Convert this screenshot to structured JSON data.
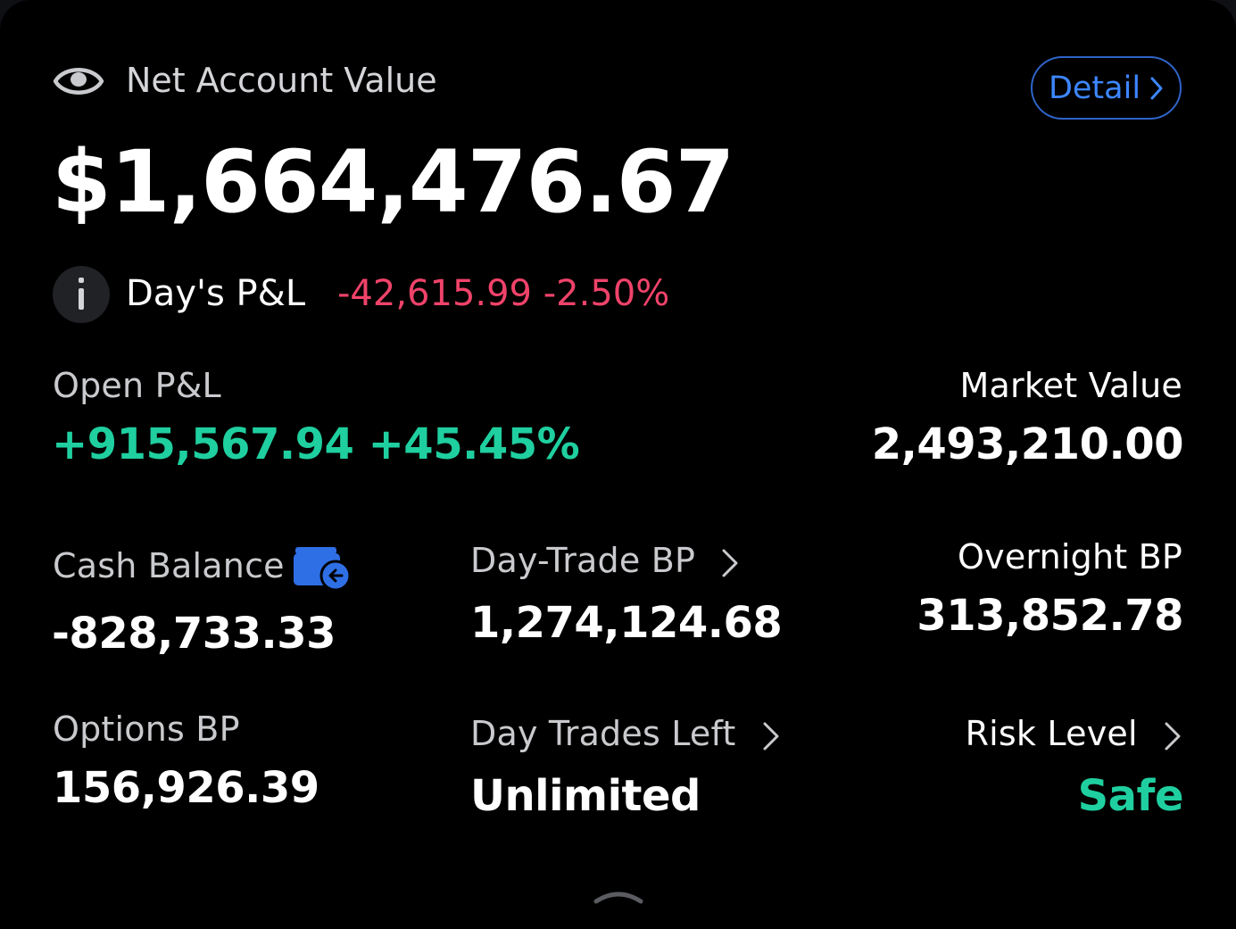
{
  "net_account_value": {
    "label": "Net Account Value",
    "amount": "$1,664,476.67",
    "detail_button": "Detail"
  },
  "days_pnl": {
    "label": "Day's P&L",
    "value": "-42,615.99 -2.50%"
  },
  "open_pnl": {
    "label": "Open P&L",
    "value": "+915,567.94 +45.45%"
  },
  "market_value": {
    "label": "Market Value",
    "value": "2,493,210.00"
  },
  "cash_balance": {
    "label": "Cash Balance",
    "value": "-828,733.33"
  },
  "day_trade_bp": {
    "label": "Day-Trade BP",
    "value": "1,274,124.68"
  },
  "overnight_bp": {
    "label": "Overnight BP",
    "value": "313,852.78"
  },
  "options_bp": {
    "label": "Options BP",
    "value": "156,926.39"
  },
  "day_trades_left": {
    "label": "Day Trades Left",
    "value": "Unlimited"
  },
  "risk_level": {
    "label": "Risk Level",
    "value": "Safe"
  },
  "icons": [
    "eye-icon",
    "chevron-right-icon",
    "info-icon",
    "wallet-transfer-icon",
    "chevron-up-icon"
  ],
  "colors": {
    "positive": "#1fcf9f",
    "negative": "#f0436a",
    "accent": "#3d86ff",
    "background": "#000000"
  }
}
